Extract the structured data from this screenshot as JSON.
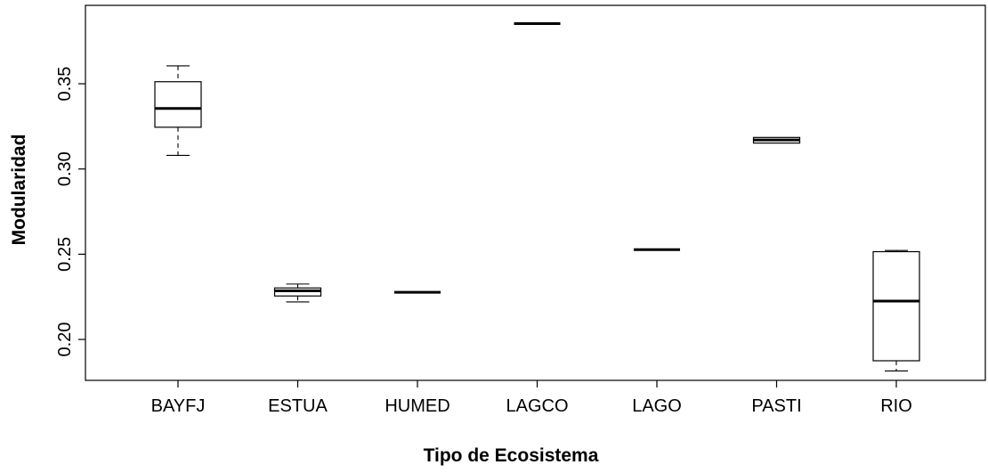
{
  "chart_data": {
    "type": "box",
    "xlabel": "Tipo de Ecosistema",
    "ylabel": "Modularidad",
    "ylim": [
      0.176,
      0.396
    ],
    "y_ticks": [
      0.2,
      0.25,
      0.3,
      0.35
    ],
    "y_tick_labels": [
      "0.20",
      "0.25",
      "0.30",
      "0.35"
    ],
    "grid": false,
    "legend": "none",
    "categories": [
      "BAYFJ",
      "ESTUA",
      "HUMED",
      "LAGCO",
      "LAGO",
      "PASTI",
      "RIO"
    ],
    "boxes": [
      {
        "category": "BAYFJ",
        "min": 0.308,
        "q1": 0.3245,
        "median": 0.3355,
        "q3": 0.3512,
        "max": 0.3605
      },
      {
        "category": "ESTUA",
        "min": 0.222,
        "q1": 0.2255,
        "median": 0.2285,
        "q3": 0.2302,
        "max": 0.2325
      },
      {
        "category": "HUMED",
        "min": 0.2277,
        "q1": 0.2277,
        "median": 0.2277,
        "q3": 0.2277,
        "max": 0.2277
      },
      {
        "category": "LAGCO",
        "min": 0.3853,
        "q1": 0.3853,
        "median": 0.3853,
        "q3": 0.3853,
        "max": 0.3853
      },
      {
        "category": "LAGO",
        "min": 0.2527,
        "q1": 0.2527,
        "median": 0.2527,
        "q3": 0.2527,
        "max": 0.2527
      },
      {
        "category": "PASTI",
        "min": 0.3152,
        "q1": 0.3152,
        "median": 0.317,
        "q3": 0.3185,
        "max": 0.3185
      },
      {
        "category": "RIO",
        "min": 0.1815,
        "q1": 0.1875,
        "median": 0.2225,
        "q3": 0.2515,
        "max": 0.2522
      }
    ]
  }
}
